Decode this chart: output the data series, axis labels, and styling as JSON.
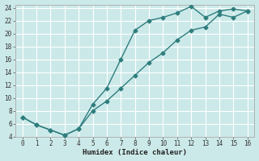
{
  "xlabel": "Humidex (Indice chaleur)",
  "background_color": "#cce9e9",
  "grid_color": "#b8d8d8",
  "line_color": "#2e7d7d",
  "xlim": [
    -0.5,
    16.5
  ],
  "ylim": [
    4,
    24.5
  ],
  "xticks": [
    0,
    1,
    2,
    3,
    4,
    5,
    6,
    7,
    8,
    9,
    10,
    11,
    12,
    13,
    14,
    15,
    16
  ],
  "yticks": [
    4,
    6,
    8,
    10,
    12,
    14,
    16,
    18,
    20,
    22,
    24
  ],
  "curve1_x": [
    0,
    1,
    2,
    3,
    4,
    5,
    6,
    7,
    8,
    9,
    10,
    11,
    12,
    13,
    14,
    15,
    16
  ],
  "curve1_y": [
    7.0,
    5.8,
    5.0,
    4.2,
    5.2,
    9.0,
    11.5,
    16.0,
    20.5,
    22.0,
    22.5,
    23.2,
    24.2,
    22.5,
    23.5,
    23.8,
    23.5
  ],
  "curve2_x": [
    0,
    1,
    2,
    3,
    4,
    5,
    6,
    7,
    8,
    9,
    10,
    11,
    12,
    13,
    14,
    15,
    16
  ],
  "curve2_y": [
    7.0,
    5.8,
    5.0,
    4.2,
    5.2,
    8.0,
    9.5,
    11.5,
    13.5,
    15.5,
    17.0,
    19.0,
    20.5,
    21.0,
    23.0,
    22.5,
    23.5
  ],
  "marker": "D",
  "marker_size": 2.5,
  "linewidth": 1.0
}
